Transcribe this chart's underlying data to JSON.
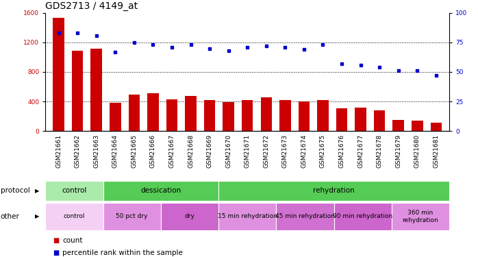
{
  "title": "GDS2713 / 4149_at",
  "samples": [
    "GSM21661",
    "GSM21662",
    "GSM21663",
    "GSM21664",
    "GSM21665",
    "GSM21666",
    "GSM21667",
    "GSM21668",
    "GSM21669",
    "GSM21670",
    "GSM21671",
    "GSM21672",
    "GSM21673",
    "GSM21674",
    "GSM21675",
    "GSM21676",
    "GSM21677",
    "GSM21678",
    "GSM21679",
    "GSM21680",
    "GSM21681"
  ],
  "counts": [
    1530,
    1090,
    1120,
    380,
    490,
    510,
    430,
    480,
    420,
    390,
    420,
    460,
    420,
    400,
    420,
    310,
    320,
    280,
    150,
    140,
    110
  ],
  "percentile": [
    83,
    83,
    81,
    67,
    75,
    73,
    71,
    73,
    70,
    68,
    71,
    72,
    71,
    69,
    73,
    57,
    56,
    54,
    51,
    51,
    47
  ],
  "bar_color": "#cc0000",
  "dot_color": "#0000cc",
  "ylim_left": [
    0,
    1600
  ],
  "ylim_right": [
    0,
    100
  ],
  "yticks_left": [
    0,
    400,
    800,
    1200,
    1600
  ],
  "yticks_right": [
    0,
    25,
    50,
    75,
    100
  ],
  "grid_values": [
    400,
    800,
    1200
  ],
  "protocol_segments": [
    {
      "text": "control",
      "start": 0,
      "end": 3,
      "color": "#aaeaaa"
    },
    {
      "text": "dessication",
      "start": 3,
      "end": 9,
      "color": "#55cc55"
    },
    {
      "text": "rehydration",
      "start": 9,
      "end": 21,
      "color": "#55cc55"
    }
  ],
  "other_segments": [
    {
      "text": "control",
      "start": 0,
      "end": 3,
      "color": "#f5d0f5"
    },
    {
      "text": "50 pct dry",
      "start": 3,
      "end": 6,
      "color": "#e090e0"
    },
    {
      "text": "dry",
      "start": 6,
      "end": 9,
      "color": "#cc66cc"
    },
    {
      "text": "15 min rehydration",
      "start": 9,
      "end": 12,
      "color": "#e090e0"
    },
    {
      "text": "45 min rehydration",
      "start": 12,
      "end": 15,
      "color": "#d070d0"
    },
    {
      "text": "90 min rehydration",
      "start": 15,
      "end": 18,
      "color": "#cc66cc"
    },
    {
      "text": "360 min\nrehydration",
      "start": 18,
      "end": 21,
      "color": "#e090e0"
    }
  ],
  "title_fontsize": 10,
  "tick_fontsize": 6.5,
  "bar_width": 0.6
}
